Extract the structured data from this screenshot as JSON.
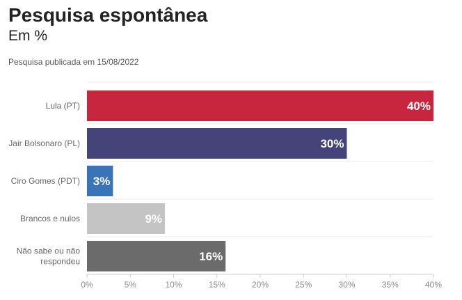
{
  "header": {
    "title": "Pesquisa espontânea",
    "subtitle": "Em %",
    "note": "Pesquisa publicada em 15/08/2022"
  },
  "chart_data": {
    "type": "bar",
    "orientation": "horizontal",
    "title": "Pesquisa espontânea",
    "subtitle": "Em %",
    "categories": [
      "Lula (PT)",
      "Jair Bolsonaro (PL)",
      "Ciro Gomes (PDT)",
      "Brancos e nulos",
      "Não sabe ou não respondeu"
    ],
    "values": [
      40,
      30,
      3,
      9,
      16
    ],
    "data_labels": [
      "40%",
      "30%",
      "3%",
      "9%",
      "16%"
    ],
    "colors": [
      "#c8263e",
      "#44447a",
      "#3a74b8",
      "#c4c4c4",
      "#6b6b6b"
    ],
    "xlim": [
      0,
      40
    ],
    "xticks": [
      0,
      5,
      10,
      15,
      20,
      25,
      30,
      35,
      40
    ],
    "xtick_labels": [
      "0%",
      "5%",
      "10%",
      "15%",
      "20%",
      "25%",
      "30%",
      "35%",
      "40%"
    ],
    "grid": true,
    "legend": "none"
  }
}
